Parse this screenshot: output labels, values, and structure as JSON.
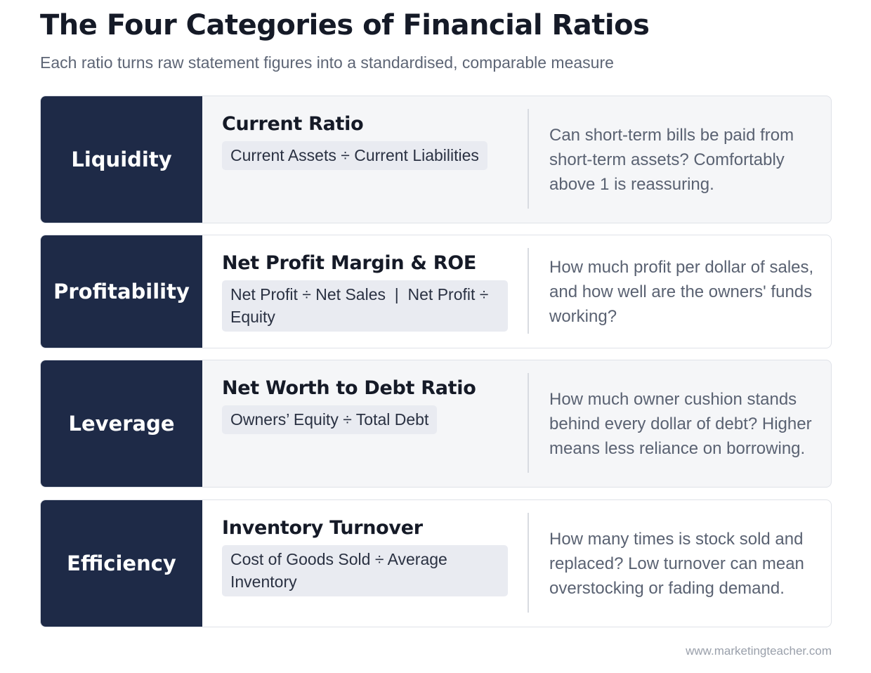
{
  "header": {
    "title": "The Four Categories of Financial Ratios",
    "subtitle": "Each ratio turns raw statement figures into a standardised, comparable measure"
  },
  "rows": [
    {
      "category": "Liquidity",
      "ratio": "Current Ratio",
      "formula": "Current Assets ÷ Current Liabilities",
      "description": "Can short-term bills be paid from short-term assets? Comfortably above 1 is reassuring."
    },
    {
      "category": "Profitability",
      "ratio": "Net Profit Margin & ROE",
      "formula": "Net Profit ÷ Net Sales  |  Net Profit ÷ Equity",
      "description": "How much profit per dollar of sales, and how well are the owners' funds working?"
    },
    {
      "category": "Leverage",
      "ratio": "Net Worth to Debt Ratio",
      "formula": "Owners’ Equity ÷ Total Debt",
      "description": "How much owner cushion stands behind every dollar of debt? Higher means less reliance on borrowing."
    },
    {
      "category": "Efficiency",
      "ratio": "Inventory Turnover",
      "formula": "Cost of Goods Sold ÷ Average Inventory",
      "description": "How many times is stock sold and replaced? Low turnover can mean overstocking or fading demand."
    }
  ],
  "footer": {
    "source": "www.marketingteacher.com"
  },
  "colors": {
    "category_bg": "#1e2a47",
    "row_shaded_bg": "#f5f6f8",
    "formula_bg": "#e9ebf1"
  }
}
